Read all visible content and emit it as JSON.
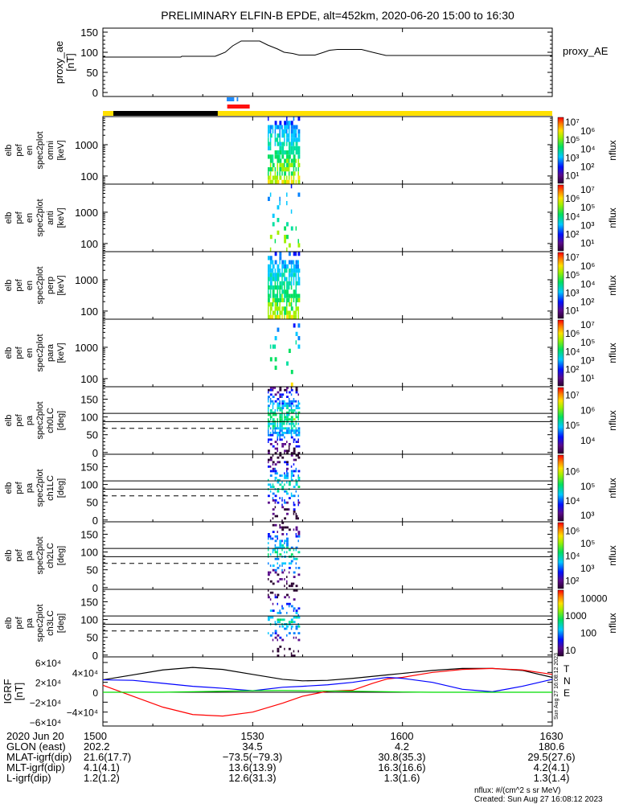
{
  "title": "PRELIMINARY ELFIN-B EPDE, alt=452km, 2020-06-20 15:00 to 16:30",
  "time_axis": {
    "start_min": 0,
    "end_min": 90,
    "major_ticks_min": [
      0,
      30,
      60,
      90
    ]
  },
  "chart_data": [
    {
      "type": "line",
      "name": "proxy_ae",
      "ylabel_lines": [
        "proxy_ae",
        "[nT]"
      ],
      "legend": "proxy_AE",
      "ylim": [
        0,
        150
      ],
      "yticks": [
        "0",
        "50",
        "100",
        "150"
      ],
      "ytick_values": [
        0,
        50,
        100,
        150
      ],
      "x_minutes": [
        0,
        15.6,
        15.8,
        22.5,
        22.9,
        24.5,
        26,
        27.7,
        31.4,
        33,
        35,
        36.3,
        38,
        39.3,
        42.5,
        44,
        45.4,
        47,
        51.8,
        54,
        56.7,
        90
      ],
      "values": [
        88,
        88,
        90,
        90,
        92,
        100,
        116,
        128,
        128,
        118,
        108,
        100,
        97,
        93,
        93,
        99,
        105,
        107,
        107,
        100,
        92,
        92
      ],
      "line_color": "#000000"
    },
    {
      "type": "bar",
      "name": "indicator_bars",
      "bars": [
        {
          "name": "science-zone-blue",
          "color": "#1e8cff",
          "x_minutes": [
            [
              24.8,
              26.3
            ],
            [
              26.8,
              27.1
            ]
          ]
        },
        {
          "name": "science-zone-red",
          "color": "#ff1010",
          "x_minutes": [
            [
              24.9,
              29.4
            ]
          ]
        },
        {
          "name": "sunlight-shadow",
          "color_sun": "#ffe000",
          "color_shadow": "#000000",
          "shadow_minutes": [
            [
              2.1,
              23
            ]
          ]
        }
      ]
    },
    {
      "type": "heatmap",
      "name": "en-omni",
      "ylabel_lines": [
        "elb",
        "pef",
        "en",
        "spec2plot",
        "omni",
        "[keV]"
      ],
      "yscale": "log",
      "ylim": [
        55,
        7900
      ],
      "yticks": [
        "100",
        "1000"
      ],
      "ytick_values": [
        100,
        1000
      ],
      "colorbar": {
        "label": "nflux",
        "log_range": [
          0.6,
          7
        ],
        "ticks": [
          "10¹",
          "10²",
          "10³",
          "10⁴",
          "10⁵",
          "10⁶",
          "10⁷"
        ],
        "tick_values": [
          1,
          2,
          3,
          4,
          5,
          6,
          7
        ]
      },
      "active_minutes": [
        33,
        39.5
      ],
      "density": 0.85
    },
    {
      "type": "heatmap",
      "name": "en-anti",
      "ylabel_lines": [
        "elb",
        "pef",
        "en",
        "spec2plot",
        "anti",
        "[keV]"
      ],
      "yscale": "log",
      "ylim": [
        55,
        7900
      ],
      "yticks": [
        "100",
        "1000"
      ],
      "ytick_values": [
        100,
        1000
      ],
      "colorbar": {
        "label": "nflux",
        "log_range": [
          0.6,
          7
        ],
        "ticks": [
          "10¹",
          "10²",
          "10³",
          "10⁴",
          "10⁵",
          "10⁶",
          "10⁷"
        ],
        "tick_values": [
          1,
          2,
          3,
          4,
          5,
          6,
          7
        ]
      },
      "active_minutes": [
        33,
        39.5
      ],
      "density": 0.12
    },
    {
      "type": "heatmap",
      "name": "en-perp",
      "ylabel_lines": [
        "elb",
        "pef",
        "en",
        "spec2plot",
        "perp",
        "[keV]"
      ],
      "yscale": "log",
      "ylim": [
        55,
        7900
      ],
      "yticks": [
        "100",
        "1000"
      ],
      "ytick_values": [
        100,
        1000
      ],
      "colorbar": {
        "label": "nflux",
        "log_range": [
          0.6,
          7
        ],
        "ticks": [
          "10¹",
          "10²",
          "10³",
          "10⁴",
          "10⁵",
          "10⁶",
          "10⁷"
        ],
        "tick_values": [
          1,
          2,
          3,
          4,
          5,
          6,
          7
        ]
      },
      "active_minutes": [
        33,
        39.5
      ],
      "density": 0.85
    },
    {
      "type": "heatmap",
      "name": "en-para",
      "ylabel_lines": [
        "elb",
        "pef",
        "en",
        "spec2plot",
        "para",
        "[keV]"
      ],
      "yscale": "log",
      "ylim": [
        55,
        7900
      ],
      "yticks": [
        "100",
        "1000"
      ],
      "ytick_values": [
        100,
        1000
      ],
      "colorbar": {
        "label": "nflux",
        "log_range": [
          0.6,
          7
        ],
        "ticks": [
          "10¹",
          "10²",
          "10³",
          "10⁴",
          "10⁵",
          "10⁶",
          "10⁷"
        ],
        "tick_values": [
          1,
          2,
          3,
          4,
          5,
          6,
          7
        ]
      },
      "active_minutes": [
        33,
        39.5
      ],
      "density": 0.1
    },
    {
      "type": "heatmap",
      "name": "pa-ch0lc",
      "ylabel_lines": [
        "elb",
        "pef",
        "pa",
        "spec2plot",
        "ch0LC",
        "[deg]"
      ],
      "yscale": "linear",
      "ylim": [
        -5,
        185
      ],
      "yticks": [
        "0",
        "50",
        "100",
        "150"
      ],
      "ytick_values": [
        0,
        50,
        100,
        150
      ],
      "ref_lines_deg": {
        "solid": [
          110,
          87
        ],
        "dashed": 68
      },
      "colorbar": {
        "label": "nflux",
        "log_range": [
          3.4,
          7.2
        ],
        "ticks": [
          "10⁴",
          "10⁵",
          "10⁶",
          "10⁷"
        ],
        "tick_values": [
          4,
          5,
          6,
          7
        ]
      },
      "active_minutes": [
        33,
        39.5
      ],
      "density": 0.8
    },
    {
      "type": "heatmap",
      "name": "pa-ch1lc",
      "ylabel_lines": [
        "elb",
        "pef",
        "pa",
        "spec2plot",
        "ch1LC",
        "[deg]"
      ],
      "yscale": "linear",
      "ylim": [
        -5,
        185
      ],
      "yticks": [
        "0",
        "50",
        "100",
        "150"
      ],
      "ytick_values": [
        0,
        50,
        100,
        150
      ],
      "ref_lines_deg": {
        "solid": [
          110,
          87
        ],
        "dashed": 68
      },
      "colorbar": {
        "label": "nflux",
        "log_range": [
          2.9,
          6.8
        ],
        "ticks": [
          "10³",
          "10⁴",
          "10⁵",
          "10⁶"
        ],
        "tick_values": [
          3,
          4,
          5,
          6
        ]
      },
      "active_minutes": [
        33,
        39.5
      ],
      "density": 0.45
    },
    {
      "type": "heatmap",
      "name": "pa-ch2lc",
      "ylabel_lines": [
        "elb",
        "pef",
        "pa",
        "spec2plot",
        "ch2LC",
        "[deg]"
      ],
      "yscale": "linear",
      "ylim": [
        -5,
        185
      ],
      "yticks": [
        "0",
        "50",
        "100",
        "150"
      ],
      "ytick_values": [
        0,
        50,
        100,
        150
      ],
      "ref_lines_deg": {
        "solid": [
          110,
          87
        ],
        "dashed": 68
      },
      "colorbar": {
        "label": "nflux",
        "log_range": [
          1.7,
          6.3
        ],
        "ticks": [
          "10²",
          "10³",
          "10⁴",
          "10⁵",
          "10⁶"
        ],
        "tick_values": [
          2,
          3,
          4,
          5,
          6
        ]
      },
      "active_minutes": [
        33,
        39.5
      ],
      "density": 0.4
    },
    {
      "type": "heatmap",
      "name": "pa-ch3lc",
      "ylabel_lines": [
        "elb",
        "pef",
        "pa",
        "spec2plot",
        "ch3LC",
        "[deg]"
      ],
      "yscale": "linear",
      "ylim": [
        -5,
        185
      ],
      "yticks": [
        "0",
        "50",
        "100",
        "150"
      ],
      "ytick_values": [
        0,
        50,
        100,
        150
      ],
      "ref_lines_deg": {
        "solid": [
          110,
          87
        ],
        "dashed": 68
      },
      "colorbar": {
        "label": "nflux",
        "log_range": [
          0.9,
          4.2
        ],
        "ticks": [
          "10",
          "100",
          "1000",
          "10000"
        ],
        "tick_values": [
          1,
          2,
          3,
          4
        ]
      },
      "active_minutes": [
        33,
        39.5
      ],
      "density": 0.35
    },
    {
      "type": "line",
      "name": "igrf",
      "ylabel_lines": [
        "IGRF",
        "[nT]"
      ],
      "ylim": [
        -70000,
        70000
      ],
      "yticks": [
        "−6×10⁴",
        "−4×10⁴",
        "−2×10⁴",
        "0",
        "2×10⁴",
        "4×10⁴",
        "6×10⁴"
      ],
      "ytick_values": [
        -60000,
        -40000,
        -20000,
        0,
        20000,
        40000,
        60000
      ],
      "x_minutes": [
        0,
        6,
        12,
        18,
        24,
        30,
        36,
        40,
        45,
        50,
        54,
        57,
        60,
        66,
        72,
        78,
        84,
        90
      ],
      "series": [
        {
          "name": "T",
          "color": "#000000",
          "values": [
            25000,
            35000,
            45000,
            50000,
            46000,
            36000,
            26000,
            23000,
            24000,
            28000,
            32000,
            35000,
            38000,
            44000,
            48000,
            48000,
            44000,
            30000
          ]
        },
        {
          "name": "N",
          "color": "#ff0000",
          "values": [
            14000,
            -8000,
            -30000,
            -45000,
            -48000,
            -40000,
            -22000,
            -8000,
            2000,
            4000,
            18000,
            27000,
            30000,
            40000,
            46000,
            48000,
            45000,
            36000
          ]
        },
        {
          "name": "D",
          "color": "#0000ff",
          "values": [
            25000,
            24000,
            18000,
            12000,
            8000,
            3000,
            10000,
            12000,
            15000,
            20000,
            26000,
            30000,
            28000,
            20000,
            6000,
            1000,
            12000,
            26000
          ]
        },
        {
          "name": "E",
          "color": "#00dd00",
          "values": [
            0,
            0,
            0,
            1000,
            2000,
            3000,
            3500,
            3000,
            2500,
            2000,
            1500,
            1000,
            500,
            0,
            0,
            0,
            0,
            0
          ]
        }
      ],
      "legend": [
        "T",
        "N",
        "E"
      ]
    }
  ],
  "footer": {
    "rows": [
      {
        "label": "2020 Jun 20",
        "values": [
          "1500",
          "1530",
          "1600",
          "1630"
        ]
      },
      {
        "label": "GLON (east)",
        "values": [
          "202.2",
          "34.5",
          "4.2",
          "180.6"
        ]
      },
      {
        "label": "MLAT-igrf(dip)",
        "values": [
          "21.6(17.7)",
          "−73.5(−79.3)",
          "30.8(35.3)",
          "29.5(27.6)"
        ]
      },
      {
        "label": "MLT-igrf(dip)",
        "values": [
          "4.1(4.1)",
          "13.6(13.9)",
          "16.3(16.6)",
          "4.2(4.1)"
        ]
      },
      {
        "label": "L-igrf(dip)",
        "values": [
          "1.2(1.2)",
          "12.6(31.3)",
          "1.3(1.6)",
          "1.3(1.4)"
        ]
      }
    ],
    "nflux_units": "nflux: #/(cm^2 s sr MeV)",
    "created": "Created: Sun Aug 27 16:08:12 2023",
    "vertical_stamp": "Sun Aug 27 16:08:12 2023"
  }
}
